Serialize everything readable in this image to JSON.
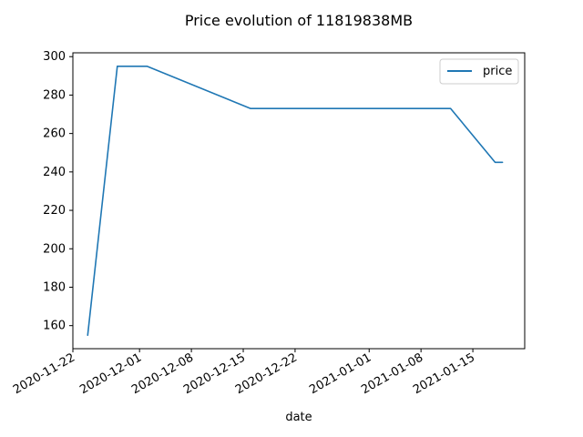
{
  "chart_data": {
    "type": "line",
    "title": "Price evolution of 11819838MB",
    "xlabel": "date",
    "ylabel": "",
    "x_type": "date",
    "xlim": [
      "2020-11-22",
      "2021-01-22"
    ],
    "ylim": [
      148,
      302
    ],
    "x_ticks": [
      "2020-11-22",
      "2020-12-01",
      "2020-12-08",
      "2020-12-15",
      "2020-12-22",
      "2021-01-01",
      "2021-01-08",
      "2021-01-15"
    ],
    "y_ticks": [
      160,
      180,
      200,
      220,
      240,
      260,
      280,
      300
    ],
    "grid": false,
    "legend_position": "top-right",
    "series": [
      {
        "name": "price",
        "color": "#1f77b4",
        "points": [
          {
            "x": "2020-11-24",
            "y": 155
          },
          {
            "x": "2020-11-28",
            "y": 295
          },
          {
            "x": "2020-12-02",
            "y": 295
          },
          {
            "x": "2020-12-16",
            "y": 273
          },
          {
            "x": "2021-01-12",
            "y": 273
          },
          {
            "x": "2021-01-18",
            "y": 245
          },
          {
            "x": "2021-01-19",
            "y": 245
          }
        ]
      }
    ]
  }
}
